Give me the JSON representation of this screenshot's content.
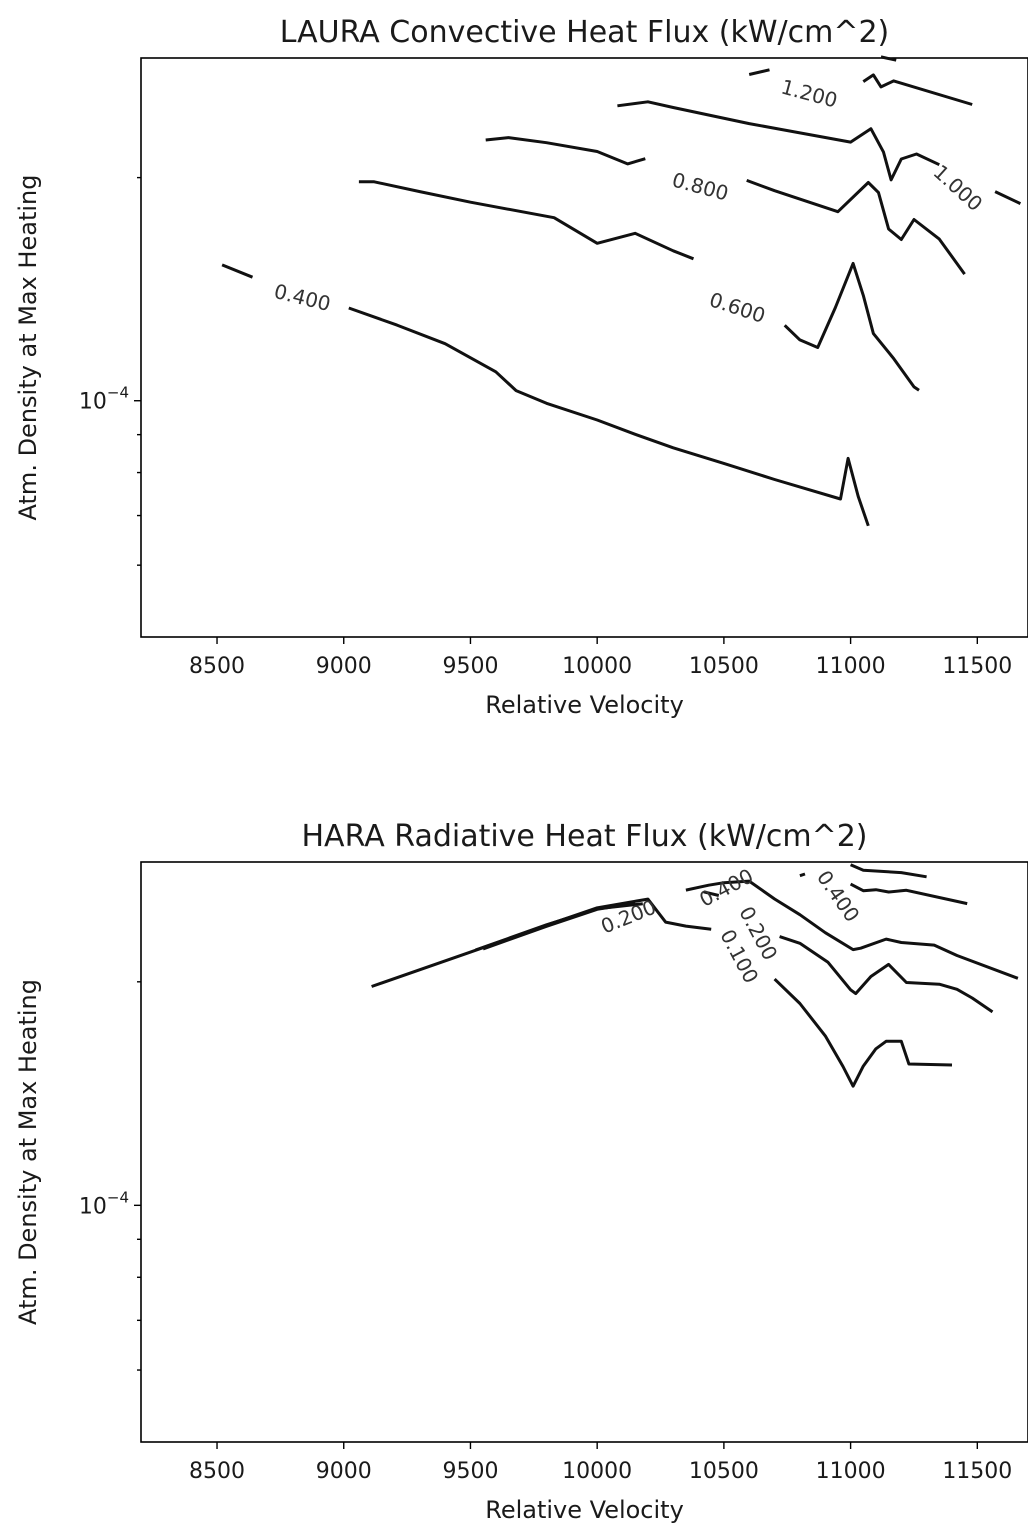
{
  "chart_data": [
    {
      "type": "line",
      "subtype": "contour",
      "title": "LAURA Convective Heat Flux (kW/cm^2)",
      "xlabel": "Relative Velocity",
      "ylabel": "Atm. Density at Max Heating",
      "xlim": [
        8200,
        11700
      ],
      "ylim": [
        4.8e-05,
        0.00029
      ],
      "yscale": "log",
      "grid": false,
      "xticks": [
        8500,
        9000,
        9500,
        10000,
        10500,
        11000,
        11500
      ],
      "xtick_labels": [
        "8500",
        "9000",
        "9500",
        "10000",
        "10500",
        "11000",
        "11500"
      ],
      "yticks_major": [
        {
          "value": 0.0001,
          "base": "10",
          "exp": "−4"
        }
      ],
      "yticks_minor": [
        6e-05,
        7e-05,
        8e-05,
        9e-05,
        0.0002
      ],
      "series": [
        {
          "level": "0.400",
          "segments": [
            [
              [
                8520,
                0.0001525
              ],
              [
                8640,
                0.0001468
              ]
            ],
            [
              [
                9020,
                0.0001334
              ],
              [
                9210,
                0.0001265
              ],
              [
                9400,
                0.0001194
              ],
              [
                9600,
                0.0001094
              ],
              [
                9680,
                0.0001032
              ],
              [
                9800,
                9.92e-05
              ],
              [
                10000,
                9.42e-05
              ],
              [
                10150,
                9.01e-05
              ],
              [
                10300,
                8.64e-05
              ],
              [
                10500,
                8.23e-05
              ],
              [
                10700,
                7.83e-05
              ],
              [
                10960,
                7.37e-05
              ],
              [
                10990,
                8.36e-05
              ],
              [
                11030,
                7.43e-05
              ],
              [
                11070,
                6.78e-05
              ]
            ]
          ]
        },
        {
          "level": "0.600",
          "segments": [
            [
              [
                9060,
                0.0001974
              ],
              [
                9120,
                0.0001974
              ],
              [
                9300,
                0.0001915
              ],
              [
                9500,
                0.0001853
              ],
              [
                9830,
                0.0001766
              ],
              [
                10000,
                0.0001631
              ],
              [
                10150,
                0.0001682
              ],
              [
                10300,
                0.0001593
              ],
              [
                10380,
                0.0001554
              ]
            ],
            [
              [
                10740,
                0.0001264
              ],
              [
                10800,
                0.0001208
              ],
              [
                10870,
                0.000118
              ],
              [
                10940,
                0.0001336
              ],
              [
                11010,
                0.0001532
              ],
              [
                11050,
                0.0001387
              ],
              [
                11090,
                0.0001232
              ],
              [
                11170,
                0.000114
              ],
              [
                11250,
                0.0001044
              ],
              [
                11270,
                0.0001033
              ]
            ]
          ]
        },
        {
          "level": "0.800",
          "segments": [
            [
              [
                9560,
                0.0002248
              ],
              [
                9650,
                0.0002265
              ],
              [
                9800,
                0.0002229
              ],
              [
                10000,
                0.0002169
              ],
              [
                10120,
                0.0002087
              ],
              [
                10190,
                0.0002121
              ]
            ],
            [
              [
                10590,
                0.0001983
              ],
              [
                10700,
                0.000192
              ],
              [
                10950,
                0.0001799
              ],
              [
                11070,
                0.000197
              ],
              [
                11110,
                0.0001909
              ],
              [
                11150,
                0.0001705
              ],
              [
                11200,
                0.000165
              ],
              [
                11250,
                0.0001756
              ],
              [
                11350,
                0.0001652
              ],
              [
                11450,
                0.0001482
              ]
            ]
          ]
        },
        {
          "level": "1.000",
          "segments": [
            [
              [
                10080,
                0.00025
              ],
              [
                10200,
                0.0002531
              ],
              [
                10300,
                0.0002487
              ],
              [
                10600,
                0.0002365
              ],
              [
                11000,
                0.0002233
              ],
              [
                11080,
                0.0002328
              ],
              [
                11130,
                0.0002165
              ],
              [
                11160,
                0.0001986
              ],
              [
                11200,
                0.0002119
              ],
              [
                11260,
                0.0002152
              ],
              [
                11350,
                0.0002082
              ]
            ],
            [
              [
                11570,
                0.0001915
              ],
              [
                11670,
                0.0001845
              ]
            ]
          ]
        },
        {
          "level": "1.200",
          "segments": [
            [
              [
                10600,
                0.0002755
              ],
              [
                10680,
                0.0002796
              ]
            ],
            [
              [
                11050,
                0.0002695
              ],
              [
                11090,
                0.0002752
              ],
              [
                11120,
                0.0002651
              ],
              [
                11170,
                0.0002701
              ],
              [
                11480,
                0.000251
              ]
            ],
            [
              [
                11120,
                0.000291
              ],
              [
                11180,
                0.000288
              ]
            ]
          ]
        }
      ],
      "contour_labels": [
        "0.400",
        "0.600",
        "0.800",
        "1.000",
        "1.200"
      ]
    },
    {
      "type": "line",
      "subtype": "contour",
      "title": "HARA Radiative Heat Flux (kW/cm^2)",
      "xlabel": "Relative Velocity",
      "ylabel": "Atm. Density at Max Heating",
      "xlim": [
        8200,
        11700
      ],
      "ylim": [
        4.8e-05,
        0.00029
      ],
      "yscale": "log",
      "grid": false,
      "xticks": [
        8500,
        9000,
        9500,
        10000,
        10500,
        11000,
        11500
      ],
      "xtick_labels": [
        "8500",
        "9000",
        "9500",
        "10000",
        "10500",
        "11000",
        "11500"
      ],
      "yticks_major": [
        {
          "value": 0.0001,
          "base": "10",
          "exp": "−4"
        }
      ],
      "yticks_minor": [
        6e-05,
        7e-05,
        8e-05,
        9e-05,
        0.0002
      ],
      "series": [
        {
          "level": "0.100",
          "segments": [
            [
              [
                9110,
                0.0001971
              ],
              [
                9500,
                0.0002193
              ],
              [
                9800,
                0.0002384
              ],
              [
                10000,
                0.0002516
              ],
              [
                10200,
                0.0002585
              ],
              [
                10270,
                0.0002407
              ],
              [
                10350,
                0.0002377
              ],
              [
                10450,
                0.0002354
              ]
            ],
            [
              [
                10700,
                0.0002017
              ],
              [
                10800,
                0.000187
              ],
              [
                10900,
                0.0001691
              ],
              [
                10970,
                0.0001538
              ],
              [
                11010,
                0.0001447
              ],
              [
                11050,
                0.000154
              ],
              [
                11100,
                0.0001625
              ],
              [
                11140,
                0.0001663
              ],
              [
                11200,
                0.0001663
              ],
              [
                11230,
                0.000155
              ],
              [
                11400,
                0.0001545
              ]
            ]
          ]
        },
        {
          "level": "0.200",
          "segments": [
            [
              [
                9520,
                0.0002207
              ],
              [
                9800,
                0.0002387
              ],
              [
                10000,
                0.0002508
              ],
              [
                10180,
                0.0002548
              ]
            ],
            [
              [
                10420,
                0.0002644
              ],
              [
                10480,
                0.0002614
              ]
            ],
            [
              [
                10720,
                0.0002301
              ],
              [
                10800,
                0.0002254
              ],
              [
                10910,
                0.0002126
              ],
              [
                11000,
                0.0001951
              ],
              [
                11020,
                0.0001928
              ],
              [
                11080,
                0.0002033
              ],
              [
                11150,
                0.0002111
              ],
              [
                11220,
                0.0001996
              ],
              [
                11350,
                0.0001985
              ],
              [
                11420,
                0.0001954
              ],
              [
                11480,
                0.0001902
              ],
              [
                11560,
                0.0001822
              ]
            ]
          ]
        },
        {
          "level": "0.400",
          "segments": [
            [
              [
                9550,
                0.0002215
              ],
              [
                9800,
                0.0002376
              ],
              [
                10000,
                0.0002504
              ],
              [
                10150,
                0.0002551
              ]
            ],
            [
              [
                10350,
                0.0002658
              ],
              [
                10440,
                0.0002699
              ],
              [
                10500,
                0.000272
              ],
              [
                10600,
                0.0002733
              ],
              [
                10700,
                0.0002586
              ],
              [
                10800,
                0.0002463
              ],
              [
                10900,
                0.0002329
              ],
              [
                11010,
                0.000221
              ],
              [
                11040,
                0.000222
              ],
              [
                11140,
                0.0002283
              ],
              [
                11200,
                0.0002259
              ],
              [
                11330,
                0.0002241
              ],
              [
                11420,
                0.000217
              ],
              [
                11660,
                0.0002022
              ]
            ],
            [
              [
                10800,
                0.0002779
              ],
              [
                10820,
                0.0002794
              ]
            ],
            [
              [
                11000,
                0.0002708
              ],
              [
                11050,
                0.0002653
              ],
              [
                11100,
                0.0002661
              ],
              [
                11150,
                0.0002642
              ],
              [
                11220,
                0.0002656
              ],
              [
                11460,
                0.0002549
              ]
            ],
            [
              [
                11000,
                0.0002875
              ],
              [
                11050,
                0.0002826
              ],
              [
                11200,
                0.0002806
              ],
              [
                11300,
                0.000277
              ]
            ]
          ]
        }
      ],
      "contour_labels": [
        "0.100",
        "0.200",
        "0.200",
        "0.400",
        "0.400"
      ]
    }
  ]
}
